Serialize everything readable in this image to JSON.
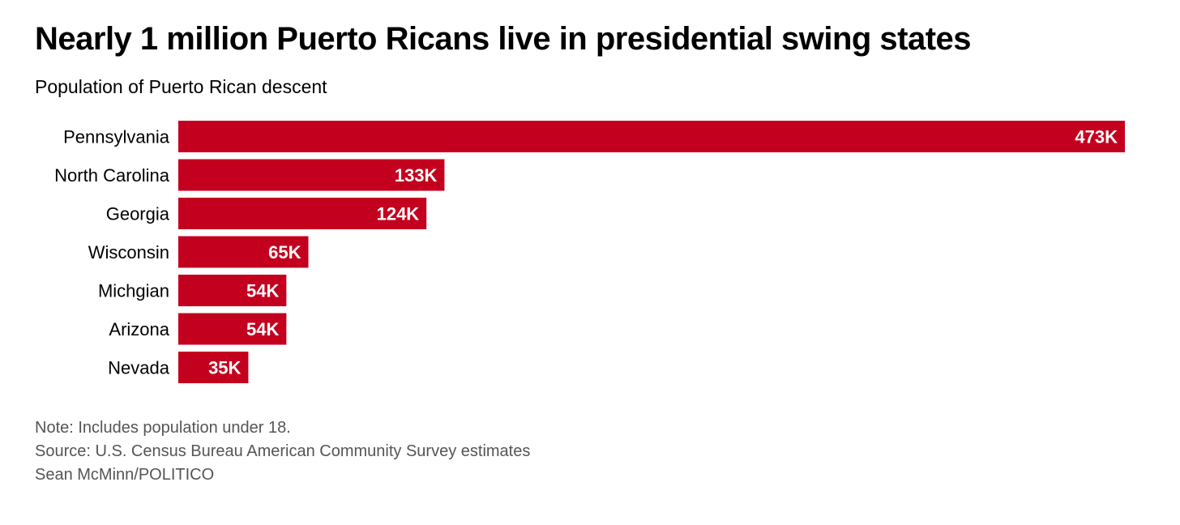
{
  "chart_data": {
    "type": "bar",
    "title": "Nearly 1 million Puerto Ricans live in presidential swing states",
    "subtitle": "Population of Puerto Rican descent",
    "categories": [
      "Pennsylvania",
      "North Carolina",
      "Georgia",
      "Wisconsin",
      "Michgian",
      "Arizona",
      "Nevada"
    ],
    "values": [
      473,
      133,
      124,
      65,
      54,
      54,
      35
    ],
    "labels": [
      "473K",
      "133K",
      "124K",
      "65K",
      "54K",
      "54K",
      "35K"
    ],
    "xlim": [
      0,
      473
    ],
    "bar_color": "#c4001f"
  },
  "notes": {
    "note": "Note: Includes population under 18.",
    "source": "Source: U.S. Census Bureau American Community Survey estimates",
    "credit": "Sean McMinn/POLITICO"
  }
}
